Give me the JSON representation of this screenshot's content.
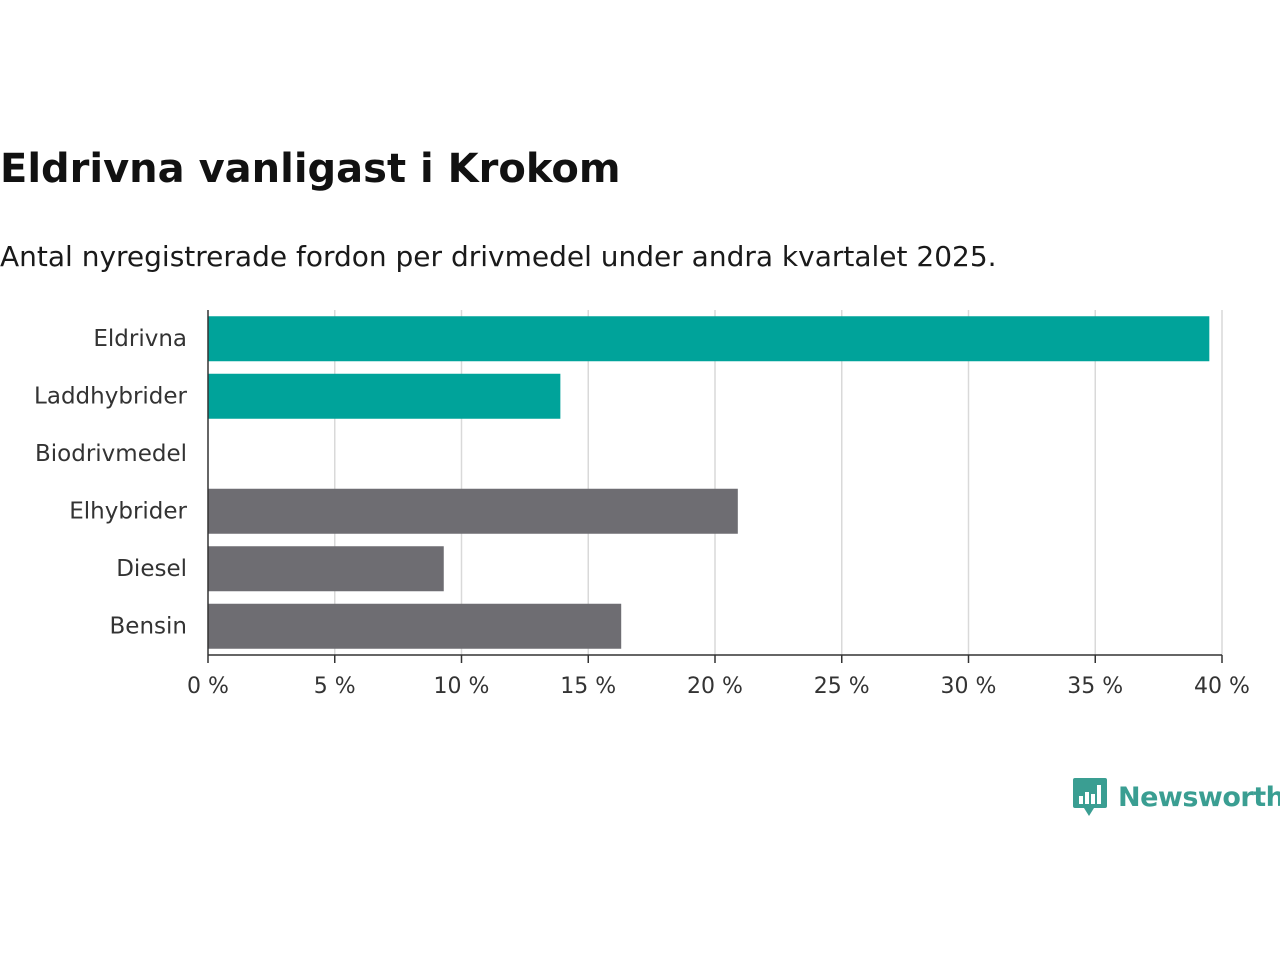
{
  "title": "Eldrivna vanligast i Krokom",
  "subtitle": "Antal nyregistrerade fordon per drivmedel under andra kvartalet 2025.",
  "brand": {
    "name": "Newsworthy",
    "color": "#3a9e92",
    "icon": "newsworthy-logo-icon"
  },
  "colors": {
    "highlight": "#00a39a",
    "other": "#6e6d72",
    "grid": "#d9d9d9",
    "axis": "#333333"
  },
  "chart_data": {
    "type": "bar",
    "orientation": "horizontal",
    "categories": [
      "Eldrivna",
      "Laddhybrider",
      "Biodrivmedel",
      "Elhybrider",
      "Diesel",
      "Bensin"
    ],
    "values": [
      39.5,
      13.9,
      0,
      20.9,
      9.3,
      16.3
    ],
    "highlight": [
      true,
      true,
      true,
      false,
      false,
      false
    ],
    "unit": "%",
    "xlim": [
      0,
      40
    ],
    "xticks": [
      0,
      5,
      10,
      15,
      20,
      25,
      30,
      35,
      40
    ],
    "xtick_labels": [
      "0 %",
      "5 %",
      "10 %",
      "15 %",
      "20 %",
      "25 %",
      "30 %",
      "35 %",
      "40 %"
    ],
    "grid": true,
    "legend": false
  }
}
